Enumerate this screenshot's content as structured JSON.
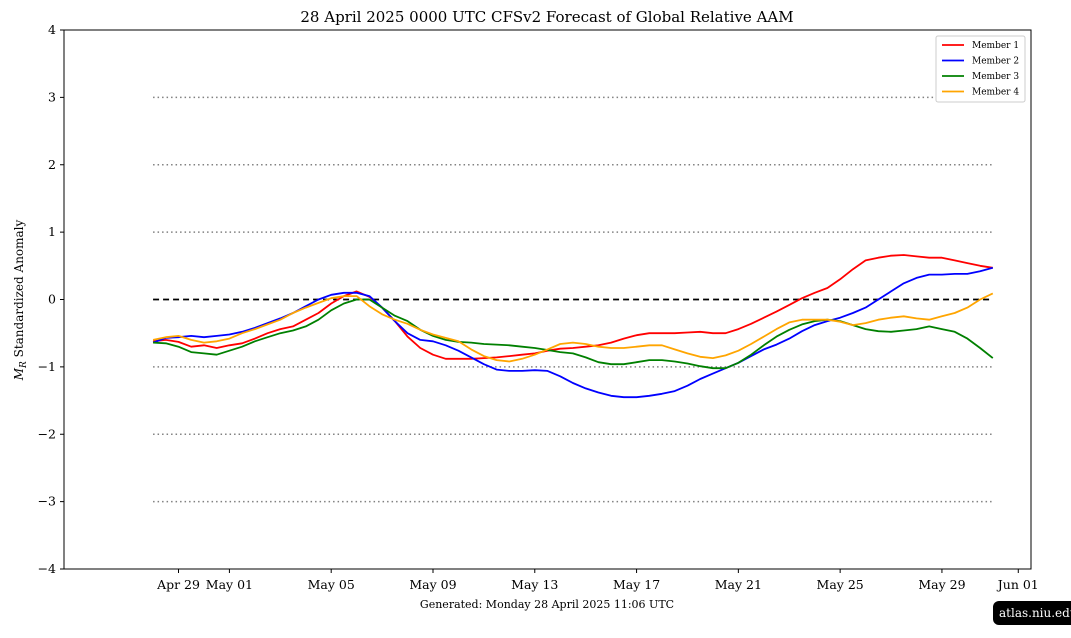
{
  "chart_data": {
    "type": "line",
    "title": "28  April  2025 0000 UTC   CFSv2 Forecast of Global Relative AAM",
    "xlabel": "",
    "ylabel_symbol": "M",
    "ylabel_sub": "R",
    "ylabel_rest": " Standardized Anomaly",
    "ylim": [
      -4,
      4
    ],
    "xlim_days": [
      -3.5,
      34.5
    ],
    "x_start": "2025-04-28T00:00",
    "x_end": "2025-05-31T00:00",
    "y_ticks": [
      4,
      3,
      2,
      1,
      0,
      -1,
      -2,
      -3,
      -4
    ],
    "y_tick_labels": [
      "4",
      "3",
      "2",
      "1",
      "0",
      "−1",
      "−2",
      "−3",
      "−4"
    ],
    "x_ticks": [
      {
        "day": 1,
        "label": "Apr 29"
      },
      {
        "day": 3,
        "label": "May 01"
      },
      {
        "day": 7,
        "label": "May 05"
      },
      {
        "day": 11,
        "label": "May 09"
      },
      {
        "day": 15,
        "label": "May 13"
      },
      {
        "day": 19,
        "label": "May 17"
      },
      {
        "day": 23,
        "label": "May 21"
      },
      {
        "day": 27,
        "label": "May 25"
      },
      {
        "day": 31,
        "label": "May 29"
      },
      {
        "day": 34,
        "label": "Jun 01"
      }
    ],
    "reference_lines": [
      {
        "y": 3,
        "style": "dotted",
        "color": "#808080"
      },
      {
        "y": 2,
        "style": "dotted",
        "color": "#808080"
      },
      {
        "y": 1,
        "style": "dotted",
        "color": "#808080"
      },
      {
        "y": 0,
        "style": "dashed",
        "color": "#000000"
      },
      {
        "y": -1,
        "style": "dotted",
        "color": "#808080"
      },
      {
        "y": -2,
        "style": "dotted",
        "color": "#808080"
      },
      {
        "y": -3,
        "style": "dotted",
        "color": "#808080"
      }
    ],
    "legend_position": "top-right",
    "series": [
      {
        "name": "Member 1",
        "color": "#ff0000",
        "points": [
          [
            0,
            -0.62
          ],
          [
            0.5,
            -0.6
          ],
          [
            1,
            -0.63
          ],
          [
            1.5,
            -0.7
          ],
          [
            2,
            -0.68
          ],
          [
            2.5,
            -0.72
          ],
          [
            3,
            -0.68
          ],
          [
            3.5,
            -0.65
          ],
          [
            4,
            -0.58
          ],
          [
            4.5,
            -0.5
          ],
          [
            5,
            -0.44
          ],
          [
            5.5,
            -0.4
          ],
          [
            6,
            -0.3
          ],
          [
            6.5,
            -0.2
          ],
          [
            7,
            -0.06
          ],
          [
            7.5,
            0.05
          ],
          [
            8,
            0.12
          ],
          [
            8.5,
            0.04
          ],
          [
            9,
            -0.12
          ],
          [
            9.5,
            -0.32
          ],
          [
            10,
            -0.55
          ],
          [
            10.5,
            -0.72
          ],
          [
            11,
            -0.82
          ],
          [
            11.5,
            -0.88
          ],
          [
            12,
            -0.88
          ],
          [
            12.5,
            -0.88
          ],
          [
            13,
            -0.87
          ],
          [
            13.5,
            -0.86
          ],
          [
            14,
            -0.84
          ],
          [
            14.5,
            -0.82
          ],
          [
            15,
            -0.8
          ],
          [
            15.5,
            -0.76
          ],
          [
            16,
            -0.73
          ],
          [
            16.5,
            -0.72
          ],
          [
            17,
            -0.7
          ],
          [
            17.5,
            -0.68
          ],
          [
            18,
            -0.64
          ],
          [
            18.5,
            -0.58
          ],
          [
            19,
            -0.53
          ],
          [
            19.5,
            -0.5
          ],
          [
            20,
            -0.5
          ],
          [
            20.5,
            -0.5
          ],
          [
            21,
            -0.49
          ],
          [
            21.5,
            -0.48
          ],
          [
            22,
            -0.5
          ],
          [
            22.5,
            -0.5
          ],
          [
            23,
            -0.44
          ],
          [
            23.5,
            -0.36
          ],
          [
            24,
            -0.27
          ],
          [
            24.5,
            -0.18
          ],
          [
            25,
            -0.08
          ],
          [
            25.5,
            0.02
          ],
          [
            26,
            0.1
          ],
          [
            26.5,
            0.17
          ],
          [
            27,
            0.3
          ],
          [
            27.5,
            0.45
          ],
          [
            28,
            0.58
          ],
          [
            28.5,
            0.62
          ],
          [
            29,
            0.65
          ],
          [
            29.5,
            0.66
          ],
          [
            30,
            0.64
          ],
          [
            30.5,
            0.62
          ],
          [
            31,
            0.62
          ],
          [
            31.5,
            0.58
          ],
          [
            32,
            0.54
          ],
          [
            32.5,
            0.5
          ],
          [
            33,
            0.47
          ]
        ]
      },
      {
        "name": "Member 2",
        "color": "#0000ff",
        "points": [
          [
            0,
            -0.64
          ],
          [
            0.5,
            -0.57
          ],
          [
            1,
            -0.56
          ],
          [
            1.5,
            -0.54
          ],
          [
            2,
            -0.56
          ],
          [
            2.5,
            -0.54
          ],
          [
            3,
            -0.52
          ],
          [
            3.5,
            -0.48
          ],
          [
            4,
            -0.42
          ],
          [
            4.5,
            -0.35
          ],
          [
            5,
            -0.28
          ],
          [
            5.5,
            -0.2
          ],
          [
            6,
            -0.1
          ],
          [
            6.5,
            0.0
          ],
          [
            7,
            0.07
          ],
          [
            7.5,
            0.1
          ],
          [
            8,
            0.1
          ],
          [
            8.5,
            0.05
          ],
          [
            9,
            -0.12
          ],
          [
            9.5,
            -0.32
          ],
          [
            10,
            -0.5
          ],
          [
            10.5,
            -0.6
          ],
          [
            11,
            -0.62
          ],
          [
            11.5,
            -0.68
          ],
          [
            12,
            -0.76
          ],
          [
            12.5,
            -0.86
          ],
          [
            13,
            -0.96
          ],
          [
            13.5,
            -1.04
          ],
          [
            14,
            -1.06
          ],
          [
            14.5,
            -1.06
          ],
          [
            15,
            -1.05
          ],
          [
            15.5,
            -1.06
          ],
          [
            16,
            -1.14
          ],
          [
            16.5,
            -1.24
          ],
          [
            17,
            -1.32
          ],
          [
            17.5,
            -1.38
          ],
          [
            18,
            -1.43
          ],
          [
            18.5,
            -1.45
          ],
          [
            19,
            -1.45
          ],
          [
            19.5,
            -1.43
          ],
          [
            20,
            -1.4
          ],
          [
            20.5,
            -1.36
          ],
          [
            21,
            -1.28
          ],
          [
            21.5,
            -1.18
          ],
          [
            22,
            -1.1
          ],
          [
            22.5,
            -1.02
          ],
          [
            23,
            -0.94
          ],
          [
            23.5,
            -0.84
          ],
          [
            24,
            -0.74
          ],
          [
            24.5,
            -0.67
          ],
          [
            25,
            -0.58
          ],
          [
            25.5,
            -0.47
          ],
          [
            26,
            -0.38
          ],
          [
            26.5,
            -0.32
          ],
          [
            27,
            -0.27
          ],
          [
            27.5,
            -0.2
          ],
          [
            28,
            -0.12
          ],
          [
            28.5,
            0.0
          ],
          [
            29,
            0.12
          ],
          [
            29.5,
            0.24
          ],
          [
            30,
            0.32
          ],
          [
            30.5,
            0.37
          ],
          [
            31,
            0.37
          ],
          [
            31.5,
            0.38
          ],
          [
            32,
            0.38
          ],
          [
            32.5,
            0.42
          ],
          [
            33,
            0.47
          ]
        ]
      },
      {
        "name": "Member 3",
        "color": "#008000",
        "points": [
          [
            0,
            -0.64
          ],
          [
            0.5,
            -0.65
          ],
          [
            1,
            -0.7
          ],
          [
            1.5,
            -0.78
          ],
          [
            2,
            -0.8
          ],
          [
            2.5,
            -0.82
          ],
          [
            3,
            -0.76
          ],
          [
            3.5,
            -0.7
          ],
          [
            4,
            -0.62
          ],
          [
            4.5,
            -0.56
          ],
          [
            5,
            -0.5
          ],
          [
            5.5,
            -0.46
          ],
          [
            6,
            -0.4
          ],
          [
            6.5,
            -0.3
          ],
          [
            7,
            -0.16
          ],
          [
            7.5,
            -0.06
          ],
          [
            8,
            0.0
          ],
          [
            8.5,
            0.0
          ],
          [
            9,
            -0.12
          ],
          [
            9.5,
            -0.24
          ],
          [
            10,
            -0.32
          ],
          [
            10.5,
            -0.45
          ],
          [
            11,
            -0.54
          ],
          [
            11.5,
            -0.6
          ],
          [
            12,
            -0.63
          ],
          [
            12.5,
            -0.64
          ],
          [
            13,
            -0.66
          ],
          [
            13.5,
            -0.67
          ],
          [
            14,
            -0.68
          ],
          [
            14.5,
            -0.7
          ],
          [
            15,
            -0.72
          ],
          [
            15.5,
            -0.75
          ],
          [
            16,
            -0.78
          ],
          [
            16.5,
            -0.8
          ],
          [
            17,
            -0.86
          ],
          [
            17.5,
            -0.93
          ],
          [
            18,
            -0.96
          ],
          [
            18.5,
            -0.96
          ],
          [
            19,
            -0.93
          ],
          [
            19.5,
            -0.9
          ],
          [
            20,
            -0.9
          ],
          [
            20.5,
            -0.92
          ],
          [
            21,
            -0.95
          ],
          [
            21.5,
            -0.99
          ],
          [
            22,
            -1.02
          ],
          [
            22.5,
            -1.02
          ],
          [
            23,
            -0.94
          ],
          [
            23.5,
            -0.82
          ],
          [
            24,
            -0.68
          ],
          [
            24.5,
            -0.55
          ],
          [
            25,
            -0.45
          ],
          [
            25.5,
            -0.37
          ],
          [
            26,
            -0.32
          ],
          [
            26.5,
            -0.3
          ],
          [
            27,
            -0.32
          ],
          [
            27.5,
            -0.38
          ],
          [
            28,
            -0.44
          ],
          [
            28.5,
            -0.47
          ],
          [
            29,
            -0.48
          ],
          [
            29.5,
            -0.46
          ],
          [
            30,
            -0.44
          ],
          [
            30.5,
            -0.4
          ],
          [
            31,
            -0.44
          ],
          [
            31.5,
            -0.48
          ],
          [
            32,
            -0.58
          ],
          [
            32.5,
            -0.72
          ],
          [
            33,
            -0.87
          ]
        ]
      },
      {
        "name": "Member 4",
        "color": "#ffa500",
        "points": [
          [
            0,
            -0.6
          ],
          [
            0.5,
            -0.56
          ],
          [
            1,
            -0.54
          ],
          [
            1.5,
            -0.6
          ],
          [
            2,
            -0.64
          ],
          [
            2.5,
            -0.62
          ],
          [
            3,
            -0.58
          ],
          [
            3.5,
            -0.5
          ],
          [
            4,
            -0.44
          ],
          [
            4.5,
            -0.37
          ],
          [
            5,
            -0.3
          ],
          [
            5.5,
            -0.2
          ],
          [
            6,
            -0.12
          ],
          [
            6.5,
            -0.05
          ],
          [
            7,
            0.02
          ],
          [
            7.5,
            0.05
          ],
          [
            8,
            0.05
          ],
          [
            8.5,
            -0.1
          ],
          [
            9,
            -0.22
          ],
          [
            9.5,
            -0.3
          ],
          [
            10,
            -0.36
          ],
          [
            10.5,
            -0.45
          ],
          [
            11,
            -0.52
          ],
          [
            11.5,
            -0.57
          ],
          [
            12,
            -0.62
          ],
          [
            12.5,
            -0.74
          ],
          [
            13,
            -0.84
          ],
          [
            13.5,
            -0.9
          ],
          [
            14,
            -0.92
          ],
          [
            14.5,
            -0.88
          ],
          [
            15,
            -0.82
          ],
          [
            15.5,
            -0.74
          ],
          [
            16,
            -0.66
          ],
          [
            16.5,
            -0.64
          ],
          [
            17,
            -0.66
          ],
          [
            17.5,
            -0.7
          ],
          [
            18,
            -0.72
          ],
          [
            18.5,
            -0.72
          ],
          [
            19,
            -0.7
          ],
          [
            19.5,
            -0.68
          ],
          [
            20,
            -0.68
          ],
          [
            20.5,
            -0.74
          ],
          [
            21,
            -0.8
          ],
          [
            21.5,
            -0.85
          ],
          [
            22,
            -0.87
          ],
          [
            22.5,
            -0.83
          ],
          [
            23,
            -0.76
          ],
          [
            23.5,
            -0.66
          ],
          [
            24,
            -0.55
          ],
          [
            24.5,
            -0.44
          ],
          [
            25,
            -0.34
          ],
          [
            25.5,
            -0.3
          ],
          [
            26,
            -0.3
          ],
          [
            26.5,
            -0.3
          ],
          [
            27,
            -0.33
          ],
          [
            27.5,
            -0.38
          ],
          [
            28,
            -0.35
          ],
          [
            28.5,
            -0.3
          ],
          [
            29,
            -0.27
          ],
          [
            29.5,
            -0.25
          ],
          [
            30,
            -0.28
          ],
          [
            30.5,
            -0.3
          ],
          [
            31,
            -0.25
          ],
          [
            31.5,
            -0.2
          ],
          [
            32,
            -0.12
          ],
          [
            32.5,
            0.0
          ],
          [
            33,
            0.09
          ]
        ]
      }
    ]
  },
  "footer": "Generated: Monday  28  April  2025  11:06 UTC",
  "watermark": "atlas.niu.edu"
}
